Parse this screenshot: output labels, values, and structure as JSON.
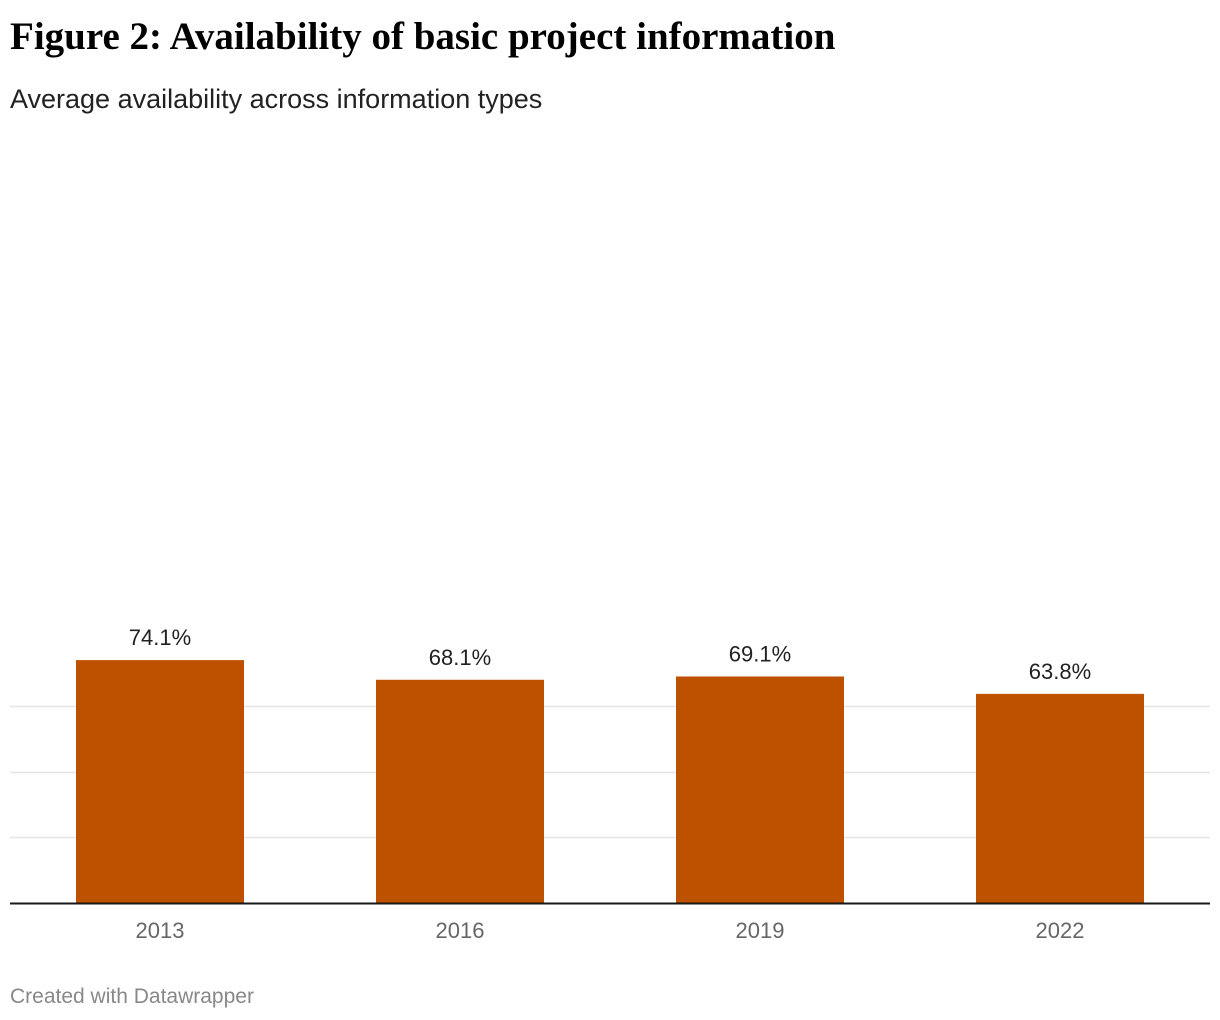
{
  "title": "Figure 2: Availability of basic project information",
  "subtitle": "Average availability across information types",
  "footer": "Created with Datawrapper",
  "colors": {
    "bar": "#bd5100",
    "gridline": "#e6e6e6",
    "baseline": "#1a1a1a",
    "value_label": "#222222",
    "tick_label": "#666666"
  },
  "chart_data": {
    "type": "bar",
    "categories": [
      "2013",
      "2016",
      "2019",
      "2022"
    ],
    "values": [
      74.1,
      68.1,
      69.1,
      63.8
    ],
    "value_labels": [
      "74.1%",
      "68.1%",
      "69.1%",
      "63.8%"
    ],
    "ylim": [
      0,
      60
    ],
    "gridlines": [
      20,
      40,
      60
    ],
    "grid": true,
    "xlabel": "",
    "ylabel": ""
  }
}
